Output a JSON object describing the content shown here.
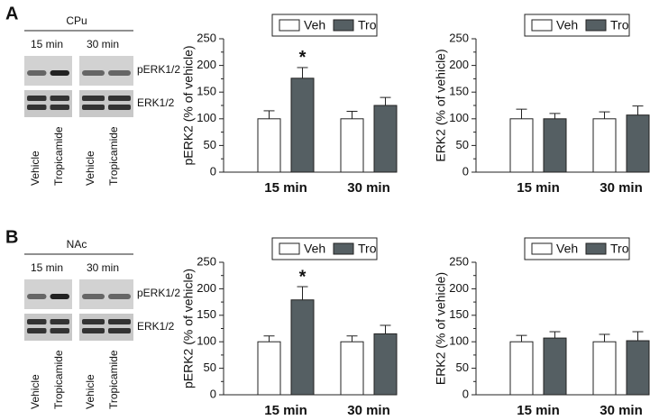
{
  "panels": [
    {
      "letter": "A",
      "region": "CPu",
      "times": [
        "15 min",
        "30 min"
      ],
      "bands": [
        "pERK1/2",
        "ERK1/2"
      ],
      "lanes": [
        "Vehicle",
        "Tropicamide",
        "Vehicle",
        "Tropicamide"
      ]
    },
    {
      "letter": "B",
      "region": "NAc",
      "times": [
        "15 min",
        "30 min"
      ],
      "bands": [
        "pERK1/2",
        "ERK1/2"
      ],
      "lanes": [
        "Vehicle",
        "Tropicamide",
        "Vehicle",
        "Tropicamide"
      ]
    }
  ],
  "chart_data": [
    {
      "type": "bar",
      "y_label": "pERK2 (% of vehicle)",
      "categories": [
        "15 min",
        "30 min"
      ],
      "series": [
        {
          "name": "Veh",
          "color": "#ffffff",
          "values": [
            100,
            100
          ],
          "errors": [
            15,
            14
          ]
        },
        {
          "name": "Tro",
          "color": "#555f63",
          "values": [
            176,
            125
          ],
          "errors": [
            20,
            15
          ],
          "significance": [
            "*",
            null
          ]
        }
      ],
      "ylim": [
        0,
        250
      ],
      "yticks": [
        0,
        50,
        100,
        150,
        200,
        250
      ],
      "legend": "top"
    },
    {
      "type": "bar",
      "y_label": "ERK2 (% of vehicle)",
      "categories": [
        "15 min",
        "30 min"
      ],
      "series": [
        {
          "name": "Veh",
          "color": "#ffffff",
          "values": [
            100,
            100
          ],
          "errors": [
            18,
            13
          ]
        },
        {
          "name": "Tro",
          "color": "#555f63",
          "values": [
            100,
            107
          ],
          "errors": [
            10,
            17
          ]
        }
      ],
      "ylim": [
        0,
        250
      ],
      "yticks": [
        0,
        50,
        100,
        150,
        200,
        250
      ],
      "legend": "top"
    },
    {
      "type": "bar",
      "y_label": "pERK2 (% of vehicle)",
      "categories": [
        "15 min",
        "30 min"
      ],
      "series": [
        {
          "name": "Veh",
          "color": "#ffffff",
          "values": [
            100,
            100
          ],
          "errors": [
            11,
            11
          ]
        },
        {
          "name": "Tro",
          "color": "#555f63",
          "values": [
            179,
            115
          ],
          "errors": [
            25,
            16
          ],
          "significance": [
            "*",
            null
          ]
        }
      ],
      "ylim": [
        0,
        250
      ],
      "yticks": [
        0,
        50,
        100,
        150,
        200,
        250
      ],
      "legend": "top"
    },
    {
      "type": "bar",
      "y_label": "ERK2 (% of vehicle)",
      "categories": [
        "15 min",
        "30 min"
      ],
      "series": [
        {
          "name": "Veh",
          "color": "#ffffff",
          "values": [
            100,
            100
          ],
          "errors": [
            12,
            14
          ]
        },
        {
          "name": "Tro",
          "color": "#555f63",
          "values": [
            107,
            102
          ],
          "errors": [
            12,
            17
          ]
        }
      ],
      "ylim": [
        0,
        250
      ],
      "yticks": [
        0,
        50,
        100,
        150,
        200,
        250
      ],
      "legend": "top"
    }
  ]
}
